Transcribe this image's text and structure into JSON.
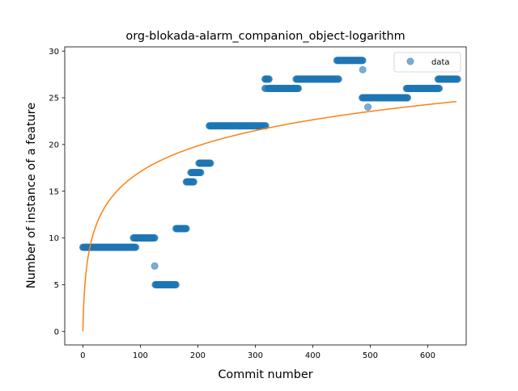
{
  "chart_data": {
    "type": "scatter",
    "title": "org-blokada-alarm_companion_object-logarithm",
    "xlabel": "Commit number",
    "ylabel": "Number of instance of a feature",
    "xlim": [
      -31.5,
      667
    ],
    "ylim": [
      -1.45,
      30.45
    ],
    "xticks": [
      0,
      100,
      200,
      300,
      400,
      500,
      600
    ],
    "yticks": [
      0,
      5,
      10,
      15,
      20,
      25,
      30
    ],
    "grid": false,
    "legend": {
      "position": "top-right",
      "entries": [
        "data"
      ]
    },
    "colors": {
      "data": "#1f77b4",
      "fit": "#ff7f0e"
    },
    "series": [
      {
        "name": "data",
        "kind": "scatter",
        "segments": [
          {
            "x_start": 0,
            "x_end": 92,
            "y": 9
          },
          {
            "x_start": 88,
            "x_end": 125,
            "y": 10
          },
          {
            "x_start": 125,
            "x_end": 125,
            "y": 7
          },
          {
            "x_start": 126,
            "x_end": 162,
            "y": 5
          },
          {
            "x_start": 162,
            "x_end": 180,
            "y": 11
          },
          {
            "x_start": 180,
            "x_end": 193,
            "y": 16
          },
          {
            "x_start": 188,
            "x_end": 205,
            "y": 17
          },
          {
            "x_start": 202,
            "x_end": 222,
            "y": 18
          },
          {
            "x_start": 220,
            "x_end": 318,
            "y": 22
          },
          {
            "x_start": 317,
            "x_end": 318,
            "y": 26
          },
          {
            "x_start": 317,
            "x_end": 324,
            "y": 27
          },
          {
            "x_start": 322,
            "x_end": 375,
            "y": 26
          },
          {
            "x_start": 371,
            "x_end": 445,
            "y": 27
          },
          {
            "x_start": 442,
            "x_end": 487,
            "y": 29
          },
          {
            "x_start": 487,
            "x_end": 487,
            "y": 28
          },
          {
            "x_start": 486,
            "x_end": 565,
            "y": 25
          },
          {
            "x_start": 496,
            "x_end": 496,
            "y": 24
          },
          {
            "x_start": 563,
            "x_end": 620,
            "y": 26
          },
          {
            "x_start": 618,
            "x_end": 652,
            "y": 27
          }
        ]
      },
      {
        "name": "",
        "kind": "line",
        "model": "logarithm",
        "x_range": [
          0,
          650
        ],
        "sample_points": [
          {
            "x": 0,
            "y": 0
          },
          {
            "x": 50,
            "y": 13.6
          },
          {
            "x": 100,
            "y": 17.2
          },
          {
            "x": 200,
            "y": 20.1
          },
          {
            "x": 300,
            "y": 21.9
          },
          {
            "x": 400,
            "y": 23.0
          },
          {
            "x": 500,
            "y": 23.8
          },
          {
            "x": 650,
            "y": 24.6
          }
        ]
      }
    ]
  }
}
